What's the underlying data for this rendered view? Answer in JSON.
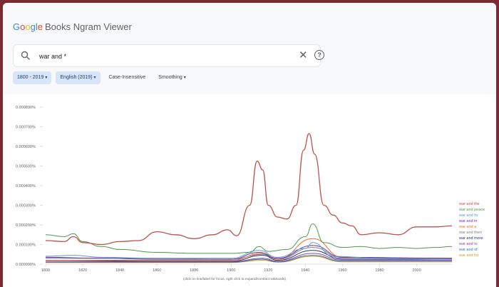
{
  "app": {
    "logo_letters": [
      "G",
      "o",
      "o",
      "g",
      "l",
      "e"
    ],
    "logo_rest": "Books Ngram Viewer"
  },
  "search": {
    "value": "war and *",
    "clear_icon": "close-icon",
    "help_icon": "help-icon"
  },
  "filters": {
    "years": "1800 - 2019",
    "corpus": "English (2019)",
    "case": "Case-Insensitive",
    "smoothing": "Smoothing"
  },
  "colors": {
    "selected_chip_bg": "#d8e4f8",
    "background_frame": "#7a2a33"
  },
  "chart_data": {
    "type": "line",
    "caption": "(click on line/label for focus, right click to expand/contract wildcards)",
    "ylim": [
      0,
      0.0008
    ],
    "xlim": [
      1800,
      2019
    ],
    "y_ticks": [
      "0.000800%",
      "0.000700%",
      "0.000600%",
      "0.000500%",
      "0.000400%",
      "0.000300%",
      "0.000200%",
      "0.000100%",
      "0.000000%"
    ],
    "y_tick_values": [
      0.0008,
      0.0007,
      0.0006,
      0.0005,
      0.0004,
      0.0003,
      0.0002,
      0.0001,
      0
    ],
    "x_ticks": [
      "1800",
      "1820",
      "1840",
      "1860",
      "1880",
      "1900",
      "1920",
      "1940",
      "1960",
      "1980",
      "2000"
    ],
    "x_tick_values": [
      1800,
      1820,
      1840,
      1860,
      1880,
      1900,
      1920,
      1940,
      1960,
      1980,
      2000
    ],
    "grid": false,
    "legend": "right",
    "series": [
      {
        "name": "war and the",
        "color": "#c0504d",
        "x": [
          1800,
          1810,
          1815,
          1820,
          1830,
          1840,
          1850,
          1860,
          1870,
          1880,
          1890,
          1898,
          1903,
          1910,
          1914,
          1917,
          1920,
          1925,
          1930,
          1935,
          1939,
          1942,
          1945,
          1950,
          1955,
          1960,
          1965,
          1970,
          1980,
          1990,
          2000,
          2010,
          2019
        ],
        "y": [
          0.00012,
          0.000115,
          0.00014,
          0.00011,
          0.0001,
          0.000115,
          0.00012,
          0.000165,
          0.00015,
          0.00013,
          0.00015,
          0.000175,
          0.000145,
          0.0003,
          0.000525,
          0.00048,
          0.0003,
          0.00024,
          0.00023,
          0.0003,
          0.00058,
          0.000665,
          0.00056,
          0.0003,
          0.00025,
          0.00021,
          0.000195,
          0.00015,
          0.00016,
          0.00015,
          0.00019,
          0.00019,
          0.000195
        ]
      },
      {
        "name": "war and peace",
        "color": "#4e9a4e",
        "x": [
          1800,
          1810,
          1815,
          1820,
          1830,
          1840,
          1860,
          1880,
          1900,
          1910,
          1915,
          1920,
          1930,
          1940,
          1944,
          1950,
          1960,
          1970,
          1980,
          1990,
          2000,
          2010,
          2019
        ],
        "y": [
          0.00015,
          0.00014,
          0.000155,
          0.000115,
          9e-05,
          7.5e-05,
          6e-05,
          5.5e-05,
          5.5e-05,
          6e-05,
          9e-05,
          6.5e-05,
          7.5e-05,
          0.00014,
          0.000205,
          0.00011,
          8.5e-05,
          9e-05,
          8e-05,
          8.5e-05,
          8e-05,
          8.5e-05,
          9e-05
        ]
      },
      {
        "name": "war and its",
        "color": "#5b9bd5",
        "x": [
          1800,
          1815,
          1830,
          1860,
          1900,
          1915,
          1925,
          1940,
          1944,
          1955,
          1980,
          2019
        ],
        "y": [
          4e-05,
          4.5e-05,
          3.5e-05,
          3e-05,
          3e-05,
          7e-05,
          3.5e-05,
          8e-05,
          0.00011,
          4e-05,
          3e-05,
          2.5e-05
        ]
      },
      {
        "name": "war and in",
        "color": "#7030a0",
        "x": [
          1800,
          1830,
          1860,
          1900,
          1915,
          1925,
          1944,
          1960,
          2019
        ],
        "y": [
          3.5e-05,
          3e-05,
          2.5e-05,
          2.5e-05,
          6e-05,
          3e-05,
          9.5e-05,
          3.5e-05,
          3e-05
        ]
      },
      {
        "name": "war and a",
        "color": "#e97132",
        "x": [
          1800,
          1860,
          1900,
          1917,
          1925,
          1944,
          1960,
          2019
        ],
        "y": [
          2e-05,
          2e-05,
          2e-05,
          5.5e-05,
          2.5e-05,
          0.00013,
          3.5e-05,
          3e-05
        ]
      },
      {
        "name": "war and then",
        "color": "#7f7f7f",
        "x": [
          1800,
          1860,
          1900,
          1917,
          1925,
          1944,
          1960,
          2019
        ],
        "y": [
          3e-05,
          3e-05,
          2.5e-05,
          5e-05,
          2.5e-05,
          8.5e-05,
          3e-05,
          3e-05
        ]
      },
      {
        "name": "war and more",
        "color": "#1f3864",
        "x": [
          1800,
          1860,
          1900,
          1917,
          1925,
          1944,
          1960,
          2019
        ],
        "y": [
          2e-05,
          1.5e-05,
          1.5e-05,
          4.5e-05,
          2e-05,
          7e-05,
          2.5e-05,
          2.5e-05
        ]
      },
      {
        "name": "war and to",
        "color": "#8e44ad",
        "x": [
          1800,
          1860,
          1900,
          1917,
          1925,
          1944,
          1960,
          2019
        ],
        "y": [
          1.5e-05,
          1.2e-05,
          1.2e-05,
          3e-05,
          1.5e-05,
          5.5e-05,
          2e-05,
          2e-05
        ]
      },
      {
        "name": "war and of",
        "color": "#2e75b6",
        "x": [
          1800,
          1860,
          1900,
          1917,
          1925,
          1944,
          1960,
          2019
        ],
        "y": [
          1e-05,
          1e-05,
          1e-05,
          2.5e-05,
          1.2e-05,
          4.5e-05,
          1.5e-05,
          1.5e-05
        ]
      },
      {
        "name": "war and for",
        "color": "#d4a017",
        "x": [
          1800,
          1860,
          1900,
          1917,
          1925,
          1944,
          1960,
          2019
        ],
        "y": [
          8e-06,
          8e-06,
          8e-06,
          2e-05,
          1e-05,
          4e-05,
          1.2e-05,
          1.2e-05
        ]
      }
    ]
  }
}
